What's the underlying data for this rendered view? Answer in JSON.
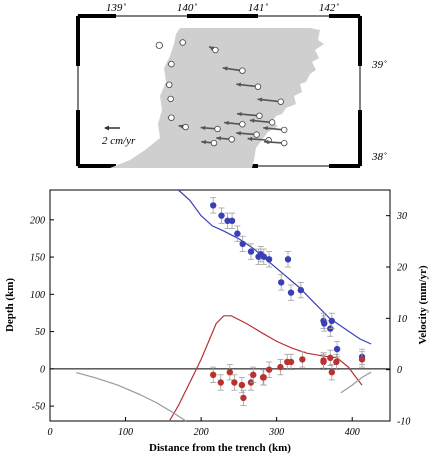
{
  "map": {
    "lon_labels": [
      "139˚",
      "140˚",
      "141˚",
      "142˚"
    ],
    "lat_labels": [
      "39˚",
      "38˚"
    ],
    "scale_label": "2 cm/yr",
    "land_color": "#cfcfcf",
    "arrow_color": "#555555",
    "stations": [
      {
        "lon": 140.4,
        "lat": 39.17,
        "ve": -0.45,
        "vn": 0.25
      },
      {
        "lon": 140.78,
        "lat": 38.95,
        "ve": -1.4,
        "vn": 0.2
      },
      {
        "lon": 141.0,
        "lat": 38.78,
        "ve": -1.55,
        "vn": 0.18
      },
      {
        "lon": 141.32,
        "lat": 38.62,
        "ve": -1.65,
        "vn": 0.18
      },
      {
        "lon": 141.02,
        "lat": 38.47,
        "ve": -1.6,
        "vn": 0.15
      },
      {
        "lon": 141.2,
        "lat": 38.4,
        "ve": -1.6,
        "vn": 0.15
      },
      {
        "lon": 141.37,
        "lat": 38.32,
        "ve": -1.5,
        "vn": 0.15
      },
      {
        "lon": 140.78,
        "lat": 38.38,
        "ve": -1.3,
        "vn": 0.12
      },
      {
        "lon": 140.98,
        "lat": 38.27,
        "ve": -1.45,
        "vn": 0.12
      },
      {
        "lon": 141.15,
        "lat": 38.21,
        "ve": -1.5,
        "vn": 0.12
      },
      {
        "lon": 141.37,
        "lat": 38.18,
        "ve": -1.45,
        "vn": 0.1
      },
      {
        "lon": 140.43,
        "lat": 38.33,
        "ve": -1.2,
        "vn": 0.1
      },
      {
        "lon": 140.63,
        "lat": 38.22,
        "ve": -1.1,
        "vn": 0.1
      },
      {
        "lon": 140.38,
        "lat": 38.18,
        "ve": -0.9,
        "vn": 0.1
      },
      {
        "lon": 139.94,
        "lat": 39.25,
        "ve": -0.1,
        "vn": 0.05
      },
      {
        "lon": 139.78,
        "lat": 39.02,
        "ve": -0.15,
        "vn": 0.05
      },
      {
        "lon": 139.75,
        "lat": 38.8,
        "ve": -0.25,
        "vn": 0.1
      },
      {
        "lon": 139.77,
        "lat": 38.65,
        "ve": -0.2,
        "vn": 0.1
      },
      {
        "lon": 139.98,
        "lat": 38.35,
        "ve": -0.5,
        "vn": 0.1
      },
      {
        "lon": 139.78,
        "lat": 38.45,
        "ve": -0.2,
        "vn": 0.05
      }
    ],
    "open_station": {
      "lon": 139.61,
      "lat": 39.22
    }
  },
  "chart_data": {
    "type": "scatter",
    "xlabel": "Distance from the trench (km)",
    "ylabel": "Depth (km)",
    "y2label": "Velocity (mm/yr)",
    "xlim": [
      0,
      450
    ],
    "ylim": [
      -70,
      240
    ],
    "y2lim": [
      -10,
      35
    ],
    "x_ticks": [
      0,
      100,
      200,
      300,
      400
    ],
    "y_ticks": [
      -50,
      0,
      50,
      100,
      150,
      200
    ],
    "y2_ticks": [
      -10,
      0,
      10,
      20,
      30
    ],
    "colors": {
      "blue": "#3a3fb5",
      "red": "#b83232",
      "gray": "#9a9a9a",
      "err": "#a0a0a0"
    },
    "series": [
      {
        "axis": "right",
        "color": "blue",
        "x": [
          216,
          227,
          235,
          241,
          248,
          255,
          266,
          276,
          279,
          283,
          290,
          306,
          315,
          319,
          332,
          362,
          363,
          371,
          373,
          380,
          413
        ],
        "y": [
          32,
          30,
          29,
          29,
          26.5,
          24.5,
          23,
          22,
          22.5,
          22,
          21.5,
          17,
          21.5,
          15,
          15.5,
          9.5,
          9,
          8,
          9.5,
          4,
          2.5
        ],
        "err": [
          1.5,
          1.5,
          1.5,
          1.5,
          1.5,
          1.5,
          1.5,
          1.5,
          1.5,
          1.5,
          1.5,
          1.5,
          1.5,
          1.5,
          1.5,
          1.5,
          1.5,
          1.5,
          1.5,
          1.5,
          1.5
        ]
      },
      {
        "axis": "right",
        "color": "red",
        "x": [
          216,
          226,
          238,
          244,
          254,
          256,
          266,
          269,
          282,
          283,
          290,
          305,
          314,
          319,
          334,
          362,
          362,
          371,
          373,
          379,
          413
        ],
        "y": [
          -1,
          -2.5,
          -0.5,
          -2.5,
          -3,
          -5.5,
          -2.5,
          -1,
          -1.5,
          -1.5,
          0,
          0.5,
          1.5,
          1.5,
          2,
          1.5,
          1.8,
          2.3,
          -0.5,
          1.5,
          2
        ],
        "err": [
          1.5,
          1.5,
          1.5,
          1.5,
          1.5,
          1.5,
          1.5,
          1.5,
          1.5,
          1.5,
          1.5,
          1.5,
          1.5,
          1.5,
          1.5,
          1.5,
          1.5,
          1.5,
          1.5,
          1.5,
          1.5
        ]
      }
    ],
    "curves": [
      {
        "axis": "right",
        "color": "blue",
        "x": [
          170,
          185,
          200,
          215,
          230,
          250,
          270,
          290,
          310,
          330,
          350,
          370,
          390,
          410,
          425
        ],
        "y": [
          36,
          33,
          30,
          28,
          27,
          25.5,
          23.5,
          21,
          18.5,
          16,
          13,
          10,
          8,
          6,
          5
        ]
      },
      {
        "axis": "right",
        "color": "red",
        "x": [
          158,
          170,
          180,
          190,
          200,
          210,
          220,
          230,
          240,
          260,
          280,
          300,
          320,
          340,
          360,
          380,
          395,
          405,
          413
        ],
        "y": [
          -10,
          -7,
          -4,
          -1,
          2,
          5.5,
          9,
          10.5,
          10.5,
          9,
          7.2,
          5.5,
          4.2,
          3.2,
          2.7,
          2.3,
          0.5,
          -1.5,
          -3
        ]
      },
      {
        "axis": "left",
        "color": "gray",
        "x": [
          35,
          60,
          90,
          120,
          140,
          160,
          180
        ],
        "y": [
          -5,
          -12,
          -22,
          -35,
          -45,
          -57,
          -70
        ]
      },
      {
        "axis": "right",
        "color": "gray",
        "x": [
          385,
          400,
          413,
          425
        ],
        "y": [
          -4.5,
          -3,
          -1.5,
          -0.5
        ]
      }
    ]
  }
}
